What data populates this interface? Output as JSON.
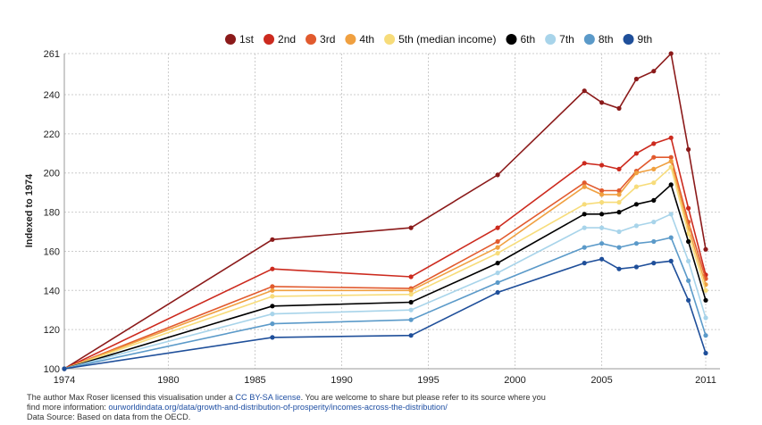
{
  "chart_data": {
    "type": "line",
    "ylabel": "Indexed to 1974",
    "xlabel": "",
    "title": "",
    "xlim": [
      1974,
      2011
    ],
    "ylim": [
      100,
      261
    ],
    "x_ticks": [
      "1974",
      "1980",
      "1985",
      "1990",
      "1995",
      "2000",
      "2005",
      "2011"
    ],
    "y_ticks": [
      "100",
      "120",
      "140",
      "160",
      "180",
      "200",
      "220",
      "240",
      "261"
    ],
    "grid": true,
    "legend_position": "top-right",
    "series": [
      {
        "name": "1st",
        "color": "#8b1a1a",
        "points": [
          [
            1974,
            100
          ],
          [
            1986,
            166
          ],
          [
            1994,
            172
          ],
          [
            1999,
            199
          ],
          [
            2004,
            242
          ],
          [
            2005,
            236
          ],
          [
            2006,
            233
          ],
          [
            2007,
            248
          ],
          [
            2008,
            252
          ],
          [
            2009,
            261
          ],
          [
            2010,
            212
          ],
          [
            2011,
            161
          ]
        ]
      },
      {
        "name": "2nd",
        "color": "#cc2a1e",
        "points": [
          [
            1974,
            100
          ],
          [
            1986,
            151
          ],
          [
            1994,
            147
          ],
          [
            1999,
            172
          ],
          [
            2004,
            205
          ],
          [
            2005,
            204
          ],
          [
            2006,
            202
          ],
          [
            2007,
            210
          ],
          [
            2008,
            215
          ],
          [
            2009,
            218
          ],
          [
            2010,
            182
          ],
          [
            2011,
            148
          ]
        ]
      },
      {
        "name": "3rd",
        "color": "#e15a2e",
        "points": [
          [
            1974,
            100
          ],
          [
            1986,
            142
          ],
          [
            1994,
            141
          ],
          [
            1999,
            165
          ],
          [
            2004,
            195
          ],
          [
            2005,
            191
          ],
          [
            2006,
            191
          ],
          [
            2007,
            201
          ],
          [
            2008,
            208
          ],
          [
            2009,
            208
          ],
          [
            2010,
            175
          ],
          [
            2011,
            146
          ]
        ]
      },
      {
        "name": "4th",
        "color": "#f0a040",
        "points": [
          [
            1974,
            100
          ],
          [
            1986,
            140
          ],
          [
            1994,
            140
          ],
          [
            1999,
            162
          ],
          [
            2004,
            193
          ],
          [
            2005,
            189
          ],
          [
            2006,
            189
          ],
          [
            2007,
            200
          ],
          [
            2008,
            202
          ],
          [
            2009,
            206
          ],
          [
            2010,
            172
          ],
          [
            2011,
            143
          ]
        ]
      },
      {
        "name": "5th (median income)",
        "color": "#f7dc7a",
        "points": [
          [
            1974,
            100
          ],
          [
            1986,
            137
          ],
          [
            1994,
            138
          ],
          [
            1999,
            159
          ],
          [
            2004,
            184
          ],
          [
            2005,
            185
          ],
          [
            2006,
            185
          ],
          [
            2007,
            193
          ],
          [
            2008,
            195
          ],
          [
            2009,
            203
          ],
          [
            2010,
            169
          ],
          [
            2011,
            140
          ]
        ]
      },
      {
        "name": "6th",
        "color": "#000000",
        "points": [
          [
            1974,
            100
          ],
          [
            1986,
            132
          ],
          [
            1994,
            134
          ],
          [
            1999,
            154
          ],
          [
            2004,
            179
          ],
          [
            2005,
            179
          ],
          [
            2006,
            180
          ],
          [
            2007,
            184
          ],
          [
            2008,
            186
          ],
          [
            2009,
            194
          ],
          [
            2010,
            165
          ],
          [
            2011,
            135
          ]
        ]
      },
      {
        "name": "7th",
        "color": "#a8d4ea",
        "points": [
          [
            1974,
            100
          ],
          [
            1986,
            128
          ],
          [
            1994,
            130
          ],
          [
            1999,
            149
          ],
          [
            2004,
            172
          ],
          [
            2005,
            172
          ],
          [
            2006,
            170
          ],
          [
            2007,
            173
          ],
          [
            2008,
            175
          ],
          [
            2009,
            179
          ],
          [
            2010,
            155
          ],
          [
            2011,
            126
          ]
        ]
      },
      {
        "name": "8th",
        "color": "#5b9ac9",
        "points": [
          [
            1974,
            100
          ],
          [
            1986,
            123
          ],
          [
            1994,
            125
          ],
          [
            1999,
            144
          ],
          [
            2004,
            162
          ],
          [
            2005,
            164
          ],
          [
            2006,
            162
          ],
          [
            2007,
            164
          ],
          [
            2008,
            165
          ],
          [
            2009,
            167
          ],
          [
            2010,
            145
          ],
          [
            2011,
            117
          ]
        ]
      },
      {
        "name": "9th",
        "color": "#1f4f9a",
        "points": [
          [
            1974,
            100
          ],
          [
            1986,
            116
          ],
          [
            1994,
            117
          ],
          [
            1999,
            139
          ],
          [
            2004,
            154
          ],
          [
            2005,
            156
          ],
          [
            2006,
            151
          ],
          [
            2007,
            152
          ],
          [
            2008,
            154
          ],
          [
            2009,
            155
          ],
          [
            2010,
            135
          ],
          [
            2011,
            108
          ]
        ]
      }
    ]
  },
  "footer": {
    "line1_a": "The author Max Roser licensed this visualisation under a ",
    "license": "CC BY-SA license",
    "line1_b": ". You are welcome to share but please refer to its source where you",
    "line2_a": "find more information: ",
    "url": "ourworldindata.org/data/growth-and-distribution-of-prosperity/incomes-across-the-distribution/",
    "line3": "Data Source: Based on data from the OECD."
  }
}
